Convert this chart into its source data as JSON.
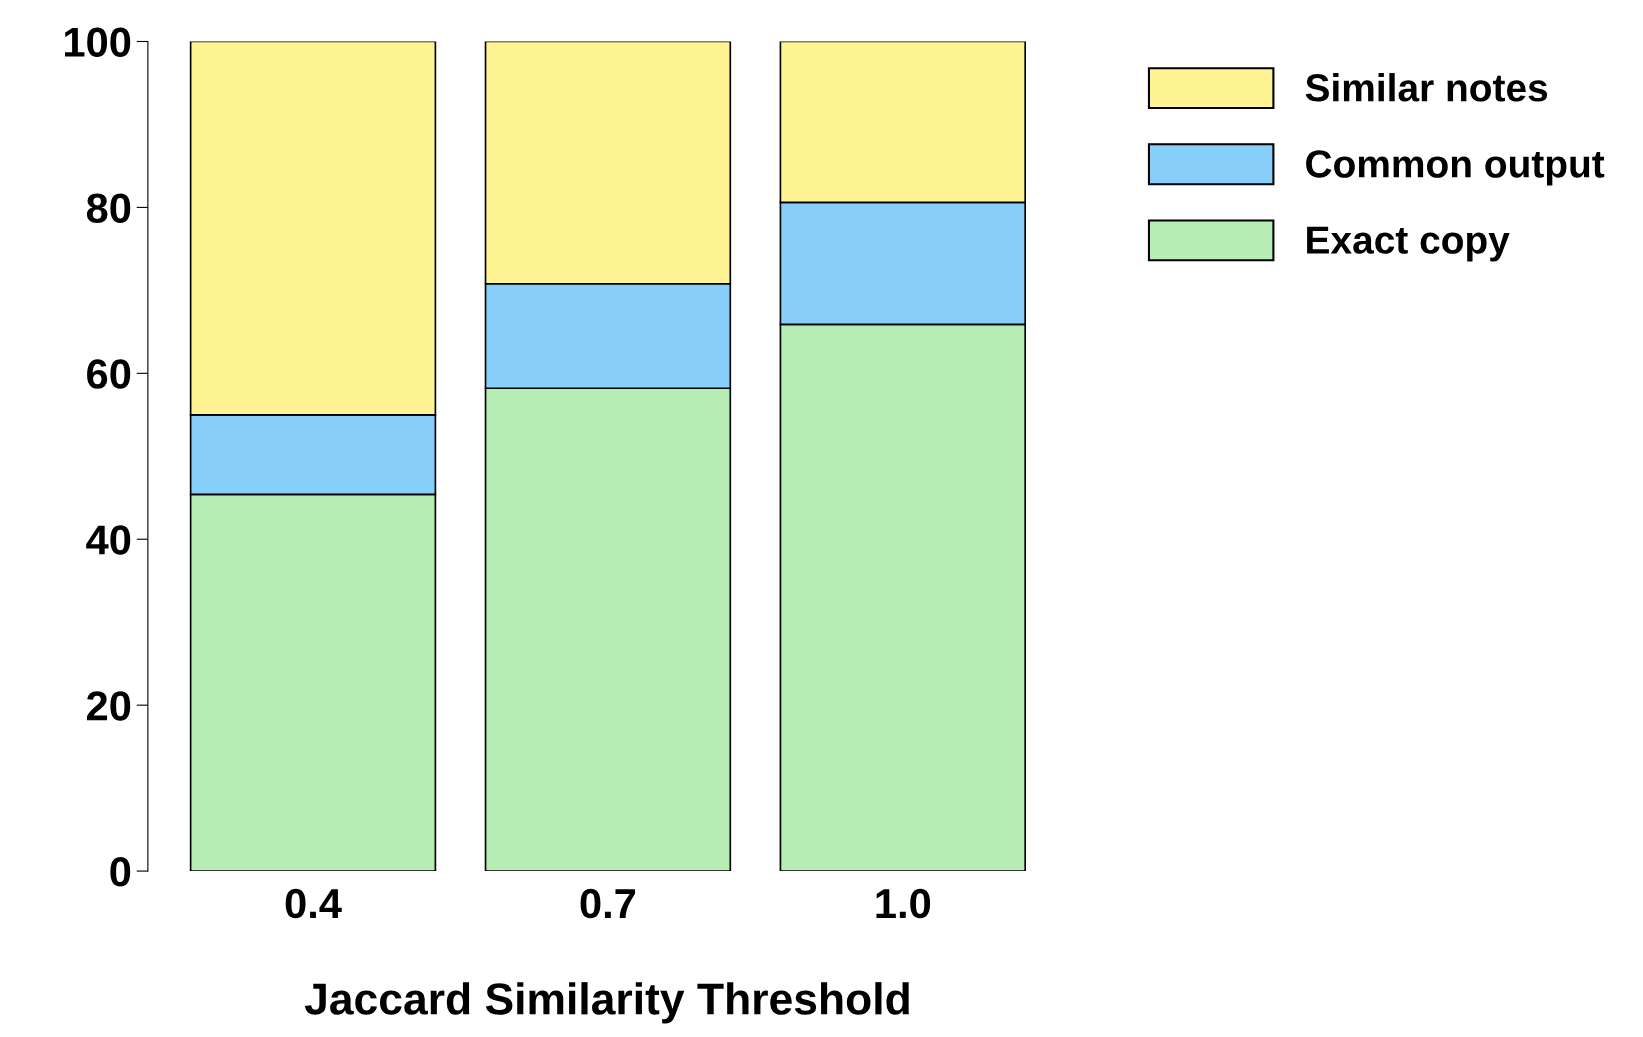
{
  "chart_data": {
    "type": "bar",
    "stacked": true,
    "xlabel": "Jaccard Similarity Threshold",
    "categories": [
      "0.4",
      "0.7",
      "1.0"
    ],
    "series": [
      {
        "name": "Exact copy",
        "color": "#b5edb5",
        "values": [
          45.4,
          58.2,
          65.9
        ]
      },
      {
        "name": "Common output",
        "color": "#87cefa",
        "values": [
          9.6,
          12.6,
          14.7
        ]
      },
      {
        "name": "Similar notes",
        "color": "#fff493",
        "values": [
          45.0,
          29.2,
          19.4
        ]
      }
    ],
    "ylim": [
      0,
      100
    ],
    "yticks": [
      0,
      20,
      40,
      60,
      80,
      100
    ],
    "grid": false,
    "legend": "top right"
  }
}
